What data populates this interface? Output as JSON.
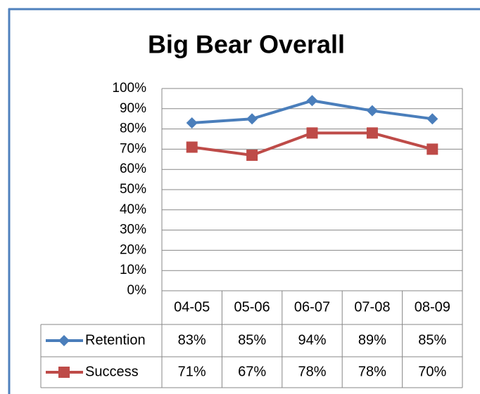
{
  "chart_data": {
    "type": "line",
    "title": "Big Bear Overall",
    "categories": [
      "04-05",
      "05-06",
      "06-07",
      "07-08",
      "08-09"
    ],
    "series": [
      {
        "name": "Retention",
        "color": "#4a7ebb",
        "marker": "diamond",
        "values": [
          83,
          85,
          94,
          89,
          85
        ],
        "value_labels": [
          "83%",
          "85%",
          "94%",
          "89%",
          "85%"
        ]
      },
      {
        "name": "Success",
        "color": "#be4b48",
        "marker": "square",
        "values": [
          71,
          67,
          78,
          78,
          70
        ],
        "value_labels": [
          "71%",
          "67%",
          "78%",
          "78%",
          "70%"
        ]
      }
    ],
    "ylim": [
      0,
      100
    ],
    "yticks": [
      {
        "value": 0,
        "label": "0%"
      },
      {
        "value": 10,
        "label": "10%"
      },
      {
        "value": 20,
        "label": "20%"
      },
      {
        "value": 30,
        "label": "30%"
      },
      {
        "value": 40,
        "label": "40%"
      },
      {
        "value": 50,
        "label": "50%"
      },
      {
        "value": 60,
        "label": "60%"
      },
      {
        "value": 70,
        "label": "70%"
      },
      {
        "value": 80,
        "label": "80%"
      },
      {
        "value": 90,
        "label": "90%"
      },
      {
        "value": 100,
        "label": "100%"
      }
    ],
    "grid": true,
    "data_table": true
  }
}
